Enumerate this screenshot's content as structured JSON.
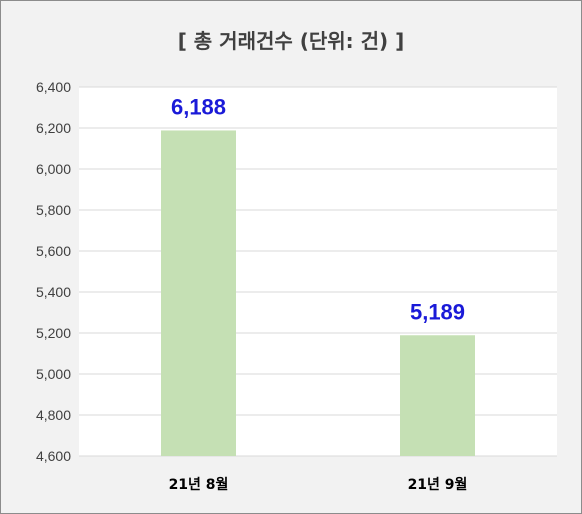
{
  "chart_data": {
    "type": "bar",
    "title": "[ 총 거래건수 (단위: 건) ]",
    "categories": [
      "21년 8월",
      "21년 9월"
    ],
    "values": [
      6188,
      5189
    ],
    "data_labels": [
      "6,188",
      "5,189"
    ],
    "ylim": [
      4600,
      6400
    ],
    "ytick_step": 200,
    "ytick_labels": [
      "4,600",
      "4,800",
      "5,000",
      "5,200",
      "5,400",
      "5,600",
      "5,800",
      "6,000",
      "6,200",
      "6,400"
    ],
    "grid": true,
    "legend": "none",
    "bar_color": "#c5e0b4",
    "label_color": "#1a1ad8"
  }
}
